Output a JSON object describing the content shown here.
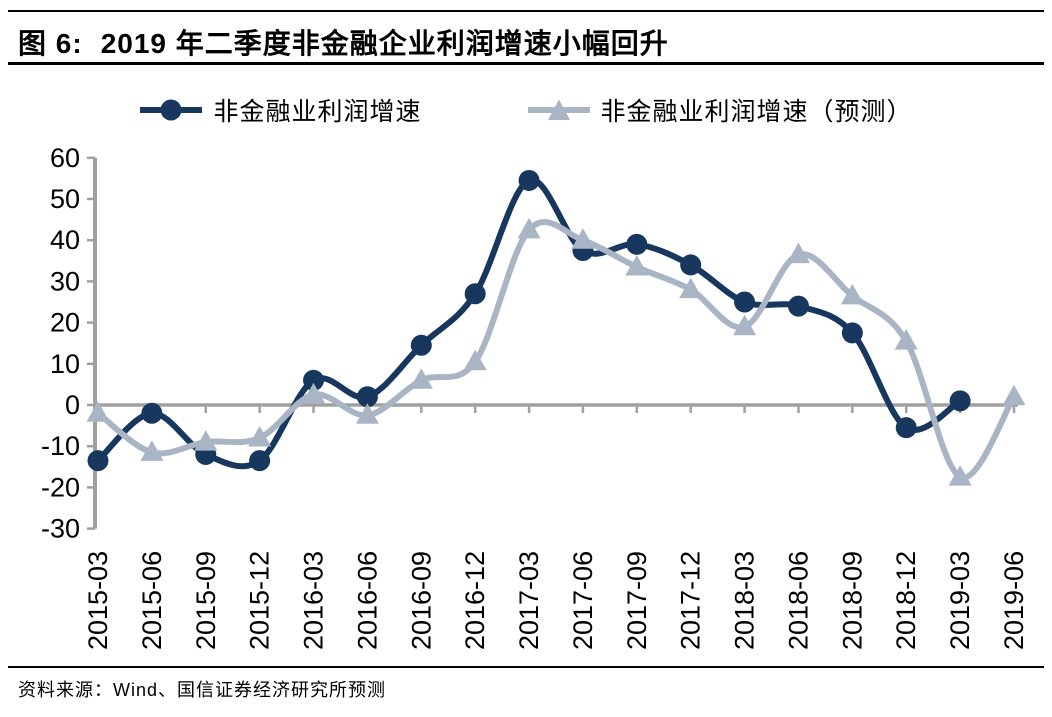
{
  "header": {
    "figure_label": "图 6:",
    "title": "2019 年二季度非金融企业利润增速小幅回升"
  },
  "footer": {
    "source": "资料来源：Wind、国信证券经济研究所预测"
  },
  "colors": {
    "actual_series": "#17375e",
    "forecast_series": "#a9b5c5",
    "axis": "#a0a0a0",
    "text": "#000000"
  },
  "chart_data": {
    "type": "line",
    "smooth": true,
    "grid": false,
    "legend_position": "top",
    "xlabel": "",
    "ylabel": "",
    "ylim": [
      -30,
      60
    ],
    "ytick_step": 10,
    "categories": [
      "2015-03",
      "2015-06",
      "2015-09",
      "2015-12",
      "2016-03",
      "2016-06",
      "2016-09",
      "2016-12",
      "2017-03",
      "2017-06",
      "2017-09",
      "2017-12",
      "2018-03",
      "2018-06",
      "2018-09",
      "2018-12",
      "2019-03",
      "2019-06"
    ],
    "series": [
      {
        "name": "非金融业利润增速",
        "marker": "circle",
        "color": "#17375e",
        "values": [
          -13.5,
          -2,
          -12,
          -13.5,
          6,
          2,
          14.5,
          27,
          54.5,
          37.5,
          39,
          34,
          25,
          24,
          17.5,
          -5.5,
          1,
          null
        ]
      },
      {
        "name": "非金融业利润增速（预测）",
        "marker": "triangle",
        "color": "#a9b5c5",
        "values": [
          -2,
          -11.5,
          -9,
          -8,
          2.5,
          -2.5,
          6,
          10.5,
          42.5,
          40,
          33.5,
          28,
          19,
          36.5,
          26.5,
          15.5,
          -17.5,
          2
        ]
      }
    ]
  }
}
